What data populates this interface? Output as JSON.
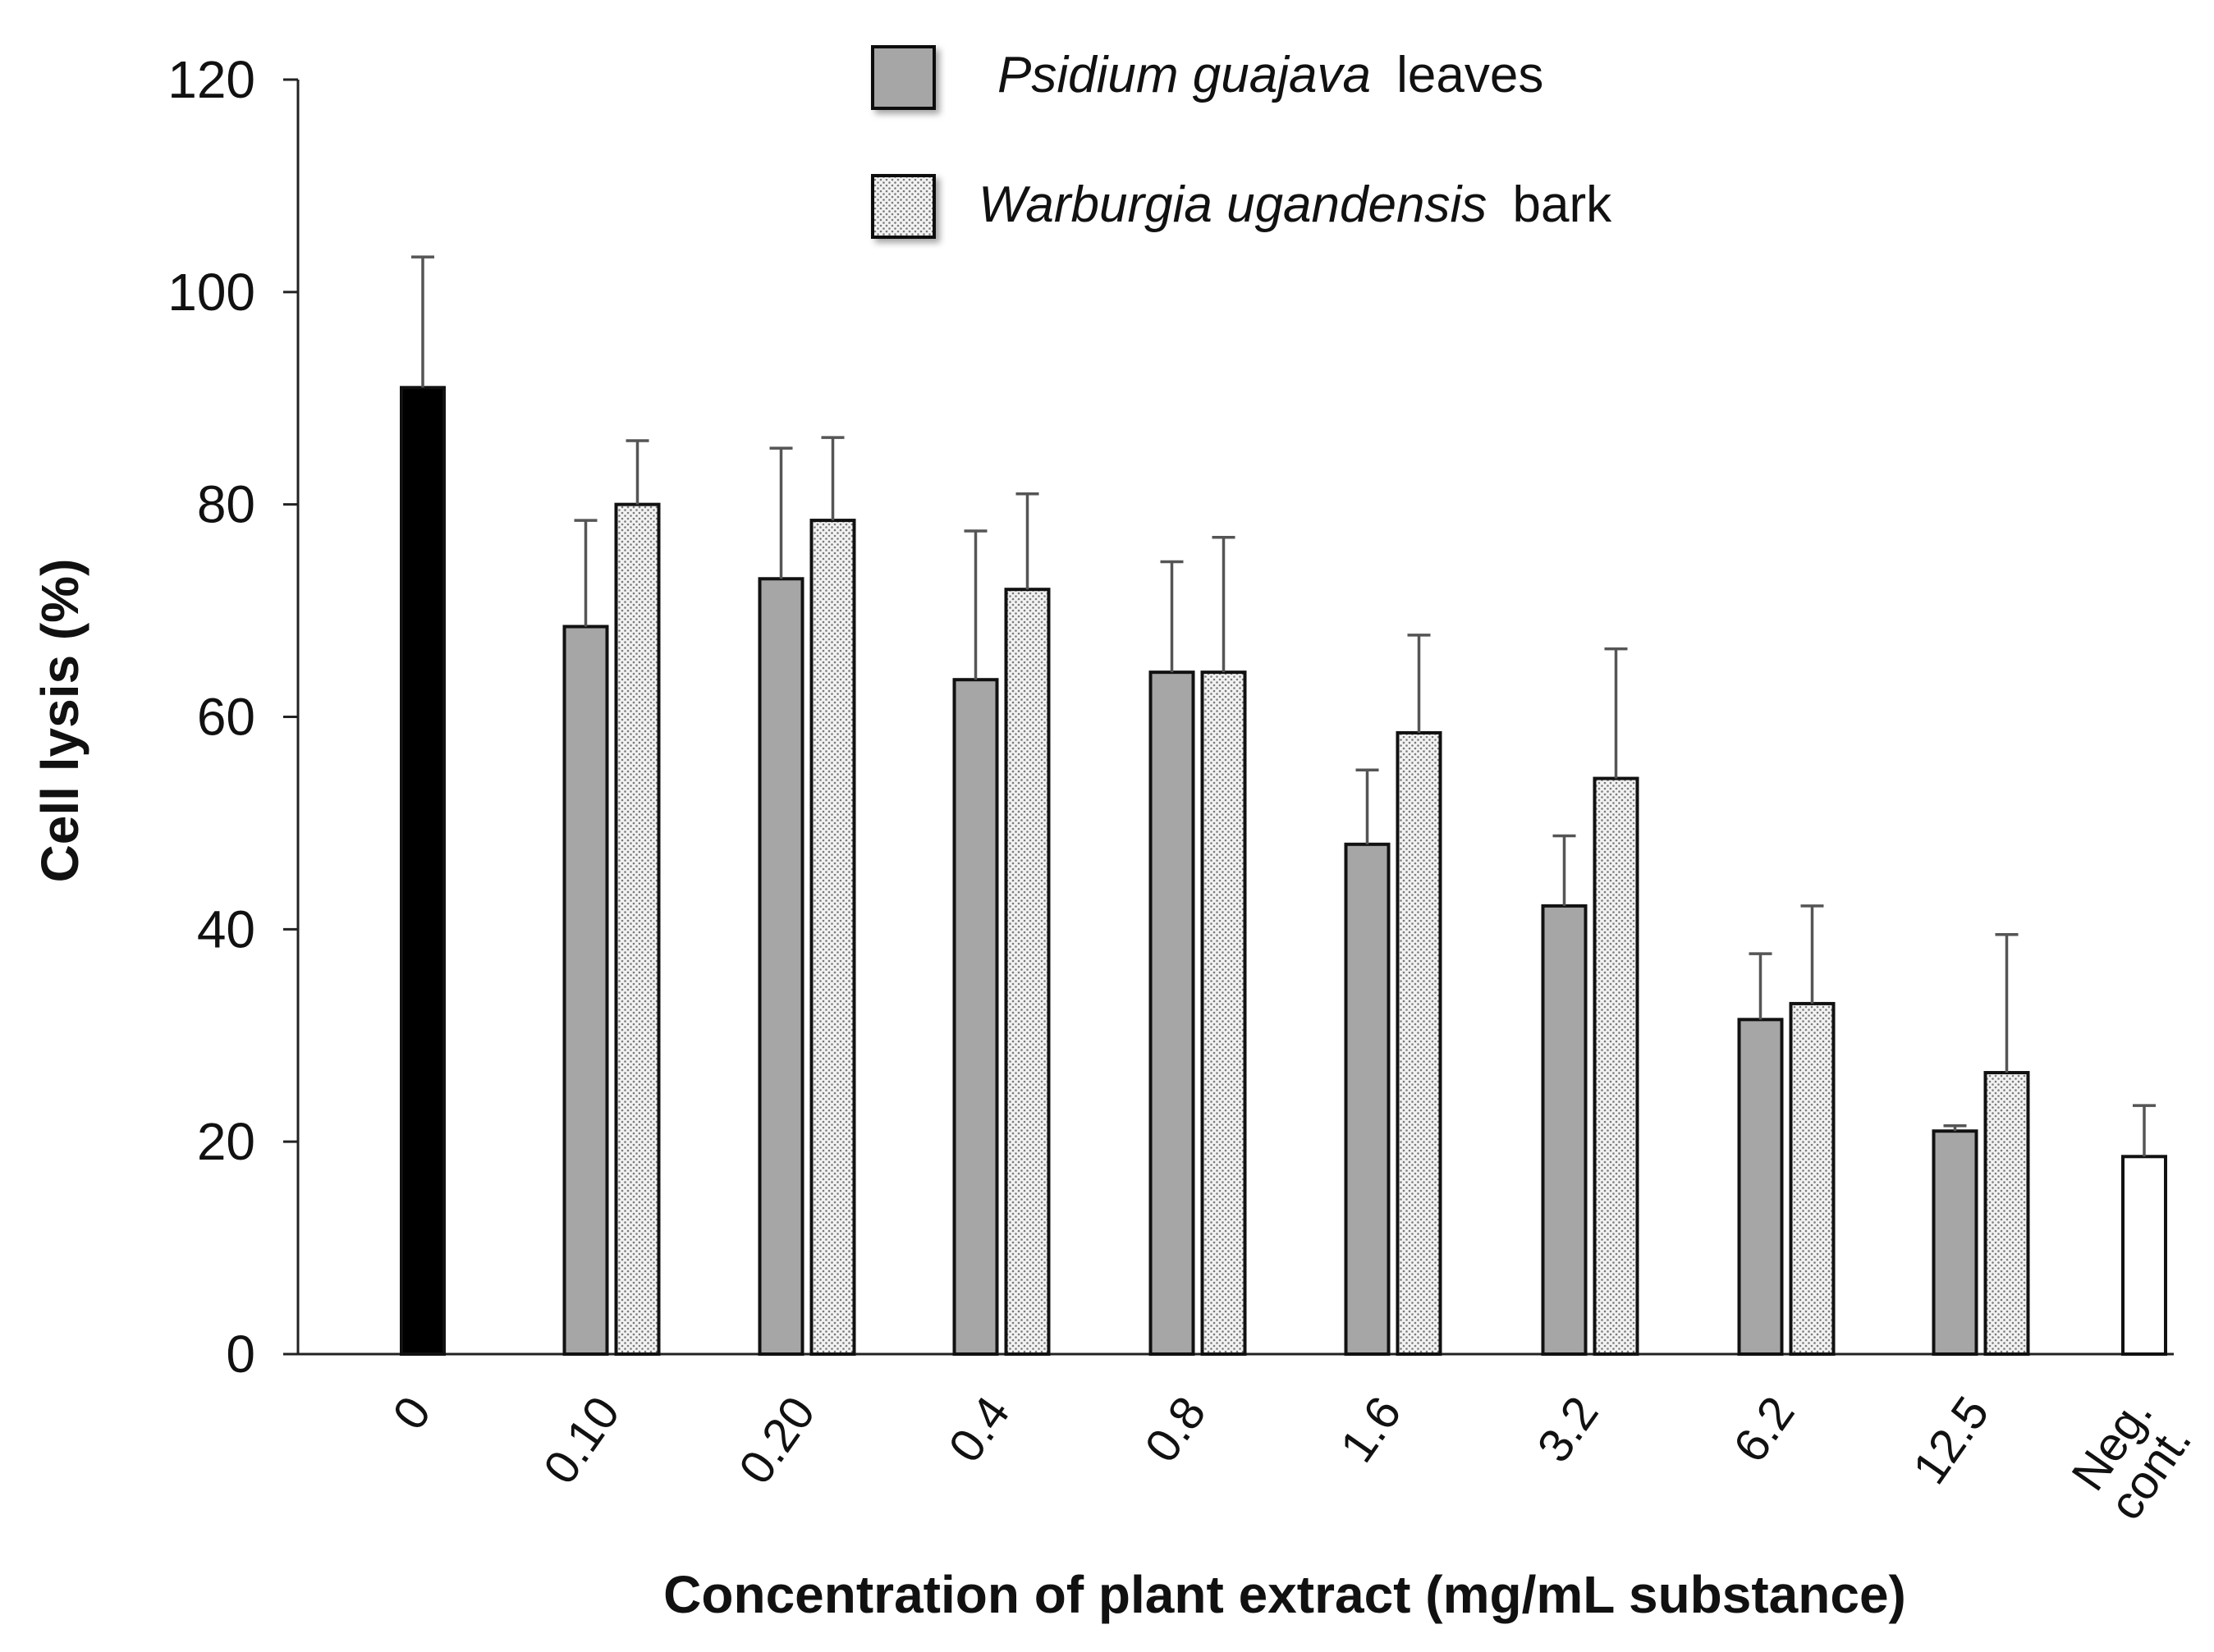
{
  "chart_data": {
    "type": "bar",
    "title": "",
    "xlabel": "Concentration of plant extract (mg/mL substance)",
    "ylabel": "Cell lysis (%)",
    "ylim": [
      0,
      120
    ],
    "yticks": [
      0,
      20,
      40,
      60,
      80,
      100,
      120
    ],
    "grid": false,
    "legend_position": "top-center",
    "categories": [
      "0",
      "0.10",
      "0.20",
      "0.4",
      "0.8",
      "1.6",
      "3.2",
      "6.2",
      "12.5",
      "Neg. cont."
    ],
    "category_label_lines": [
      [
        "0"
      ],
      [
        "0.10"
      ],
      [
        "0.20"
      ],
      [
        "0.4"
      ],
      [
        "0.8"
      ],
      [
        "1.6"
      ],
      [
        "3.2"
      ],
      [
        "6.2"
      ],
      [
        "12.5"
      ],
      [
        "Neg.",
        "cont."
      ]
    ],
    "single_bars": [
      {
        "category": "0",
        "value": 91,
        "error": 12.3,
        "color": "#000000"
      },
      {
        "category": "Neg. cont.",
        "value": 18.6,
        "error": 4.8,
        "color": "#ffffff"
      }
    ],
    "series": [
      {
        "name": "Psidium guajava leaves",
        "legend_italic": "Psidium guajava",
        "legend_plain": "leaves",
        "color": "#a6a6a6",
        "pattern": "solid",
        "values": [
          null,
          68.5,
          73,
          63.5,
          64.2,
          48,
          42.2,
          31.5,
          21,
          null
        ],
        "errors": [
          null,
          10,
          12.3,
          14,
          10.4,
          7,
          6.6,
          6.2,
          0.5,
          null
        ]
      },
      {
        "name": "Warburgia ugandensis bark",
        "legend_italic": "Warburgia ugandensis",
        "legend_plain": "bark",
        "color": "#e0e0e0",
        "pattern": "dotted",
        "values": [
          null,
          80,
          78.5,
          72,
          64.2,
          58.5,
          54.2,
          33,
          26.5,
          null
        ],
        "errors": [
          null,
          6,
          7.8,
          9,
          12.7,
          9.2,
          12.2,
          9.2,
          13,
          null
        ]
      }
    ]
  }
}
